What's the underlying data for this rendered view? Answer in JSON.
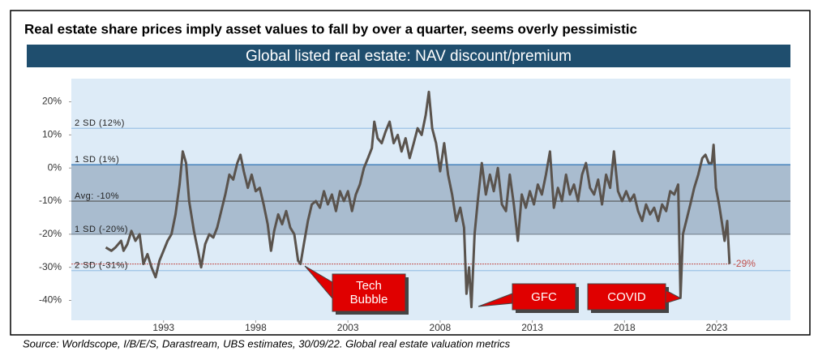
{
  "chart_data": {
    "type": "line",
    "title": "Real estate share prices imply asset values to fall by over a quarter, seems overly pessimistic",
    "subtitle": "Global listed real estate: NAV discount/premium",
    "source": "Source: Worldscope, I/B/E/S, Darastream, UBS estimates, 30/09/22. Global real estate valuation metrics",
    "color": "#5a534d",
    "xlim": [
      1988,
      2027
    ],
    "xticks": [
      1993,
      1998,
      2003,
      2008,
      2013,
      2018,
      2023
    ],
    "ylim": [
      -46,
      27
    ],
    "yticks": [
      {
        "value": -40,
        "label": "-40%"
      },
      {
        "value": -30,
        "label": "-30%"
      },
      {
        "value": -20,
        "label": "-20%"
      },
      {
        "value": -10,
        "label": "-10%"
      },
      {
        "value": 0,
        "label": "0%"
      },
      {
        "value": 10,
        "label": "10%"
      },
      {
        "value": 20,
        "label": "20%"
      }
    ],
    "reference_lines": [
      {
        "label": "2 SD (12%)",
        "value": 12
      },
      {
        "label": "1 SD (1%)",
        "value": 1
      },
      {
        "label": "Avg: -10%",
        "value": -10
      },
      {
        "label": "1 SD (-20%)",
        "value": -20
      },
      {
        "label": "2 SD (-31%)",
        "value": -31
      }
    ],
    "current": {
      "label": "-29%",
      "value": -29
    },
    "annotations": [
      "Tech Bubble",
      "GFC",
      "COVID"
    ],
    "x": [
      1989.87,
      1990.17,
      1990.39,
      1990.7,
      1990.83,
      1991.04,
      1991.26,
      1991.48,
      1991.7,
      1991.91,
      1992.13,
      1992.35,
      1992.57,
      1992.78,
      1993.0,
      1993.22,
      1993.43,
      1993.65,
      1993.87,
      1994.04,
      1994.22,
      1994.39,
      1994.65,
      1994.87,
      1995.04,
      1995.26,
      1995.48,
      1995.7,
      1995.91,
      1996.13,
      1996.35,
      1996.57,
      1996.78,
      1997.0,
      1997.17,
      1997.35,
      1997.57,
      1997.78,
      1998.0,
      1998.22,
      1998.43,
      1998.65,
      1998.83,
      1999.0,
      1999.22,
      1999.43,
      1999.65,
      1999.87,
      2000.09,
      2000.3,
      2000.43,
      2000.61,
      2000.83,
      2001.04,
      2001.26,
      2001.48,
      2001.7,
      2001.91,
      2002.13,
      2002.35,
      2002.57,
      2002.78,
      2003.0,
      2003.22,
      2003.43,
      2003.65,
      2003.87,
      2004.09,
      2004.3,
      2004.43,
      2004.61,
      2004.83,
      2005.04,
      2005.26,
      2005.48,
      2005.7,
      2005.91,
      2006.13,
      2006.35,
      2006.57,
      2006.78,
      2007.0,
      2007.22,
      2007.39,
      2007.57,
      2007.78,
      2008.0,
      2008.22,
      2008.43,
      2008.65,
      2008.87,
      2009.09,
      2009.3,
      2009.43,
      2009.57,
      2009.7,
      2009.87,
      2010.04,
      2010.26,
      2010.48,
      2010.7,
      2010.91,
      2011.13,
      2011.35,
      2011.57,
      2011.78,
      2012.0,
      2012.22,
      2012.43,
      2012.65,
      2012.87,
      2013.09,
      2013.3,
      2013.52,
      2013.74,
      2013.96,
      2014.17,
      2014.39,
      2014.61,
      2014.83,
      2015.04,
      2015.26,
      2015.48,
      2015.7,
      2015.91,
      2016.13,
      2016.35,
      2016.57,
      2016.78,
      2017.0,
      2017.22,
      2017.43,
      2017.65,
      2017.87,
      2018.09,
      2018.3,
      2018.52,
      2018.74,
      2018.96,
      2019.17,
      2019.39,
      2019.61,
      2019.83,
      2020.04,
      2020.26,
      2020.48,
      2020.7,
      2020.91,
      2021.04,
      2021.17,
      2021.35,
      2021.57,
      2021.78,
      2022.0,
      2022.22,
      2022.39,
      2022.57,
      2022.74,
      2022.83,
      2022.96,
      2023.13,
      2023.3,
      2023.43,
      2023.57,
      2023.7
    ],
    "values": [
      -24,
      -25,
      -24,
      -22,
      -25,
      -23,
      -19,
      -22,
      -20,
      -29,
      -26,
      -30,
      -33,
      -28,
      -25,
      -22,
      -20,
      -14,
      -5,
      5,
      1.5,
      -10,
      -19,
      -25,
      -30,
      -23,
      -20,
      -21,
      -18,
      -13,
      -8,
      -2,
      -3.5,
      1.5,
      4,
      -1,
      -6,
      -2,
      -7,
      -6,
      -11,
      -17,
      -25,
      -19,
      -14,
      -17,
      -13,
      -18,
      -20,
      -28,
      -29,
      -23,
      -16,
      -11,
      -10,
      -12,
      -7,
      -11,
      -8,
      -13,
      -7,
      -10,
      -7,
      -13,
      -8,
      -5,
      0,
      3,
      6,
      14,
      9,
      7.5,
      11,
      14,
      7.5,
      10,
      5,
      9,
      3,
      7.5,
      12,
      10,
      16,
      23,
      12,
      7.5,
      -1,
      7.5,
      -2,
      -8,
      -16,
      -12,
      -18,
      -38,
      -30,
      -42,
      -20,
      -10,
      1.5,
      -8,
      -2,
      -7,
      0,
      -11,
      -13,
      -2,
      -11,
      -22,
      -8,
      -12,
      -7,
      -11,
      -5,
      -8,
      -2,
      5,
      -12,
      -6,
      -10,
      -2,
      -8,
      -5,
      -10,
      -2,
      1.5,
      -6,
      -8,
      -3.5,
      -11,
      -2,
      -6,
      5,
      -7,
      -10,
      -7,
      -10,
      -8,
      -13,
      -16,
      -11,
      -14,
      -12,
      -16,
      -11,
      -13,
      -7,
      -8,
      -5,
      -39,
      -20,
      -16,
      -11,
      -6,
      -2,
      3,
      4,
      1.5,
      1.5,
      7,
      -6,
      -11,
      -17,
      -22,
      -16,
      -29
    ]
  }
}
